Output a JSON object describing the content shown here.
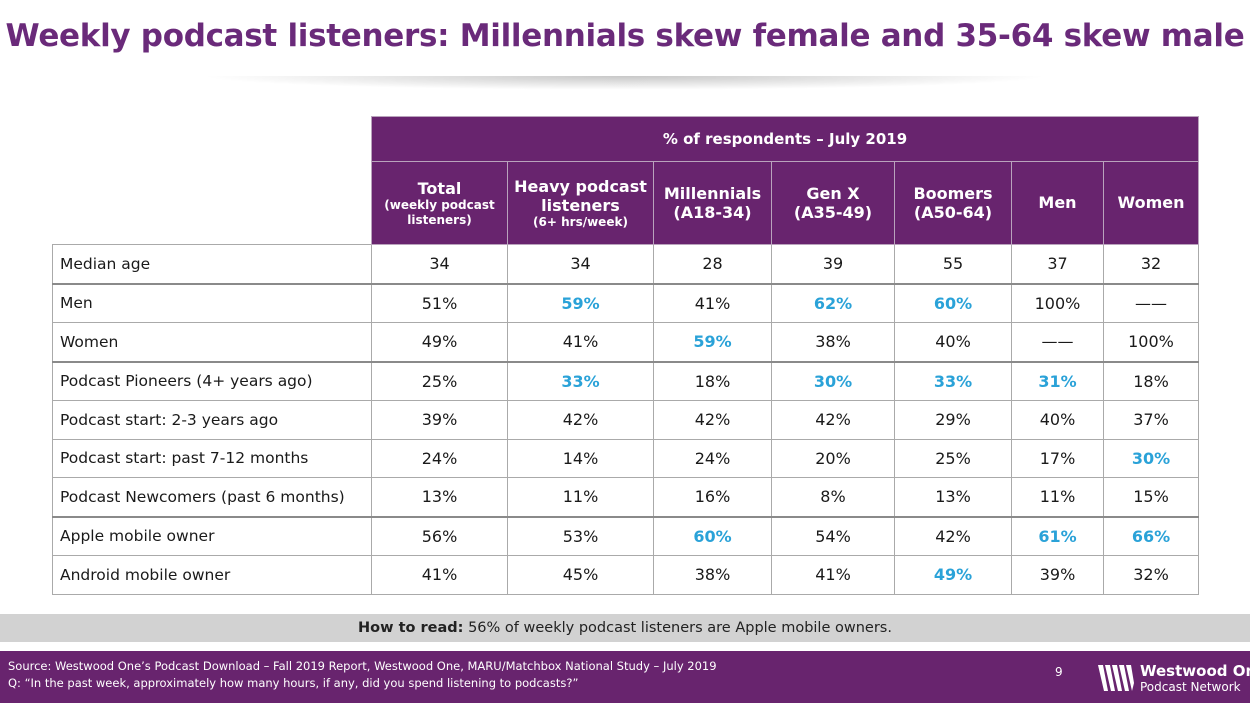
{
  "title": "Weekly podcast listeners: Millennials skew female and 35-64 skew male",
  "table": {
    "band_header": "% of respondents – July 2019",
    "columns": [
      {
        "l1": "Total",
        "l2": "(weekly podcast listeners)"
      },
      {
        "l1": "Heavy podcast listeners",
        "l2": "(6+ hrs/week)"
      },
      {
        "l1": "Millennials",
        "l2": "(A18-34)"
      },
      {
        "l1": "Gen X",
        "l2": "(A35-49)"
      },
      {
        "l1": "Boomers",
        "l2": "(A50-64)"
      },
      {
        "l1": "Men",
        "l2": ""
      },
      {
        "l1": "Women",
        "l2": ""
      }
    ],
    "rows": [
      {
        "label": "Median age",
        "cells": [
          "34",
          "34",
          "28",
          "39",
          "55",
          "37",
          "32"
        ],
        "highlight": [
          false,
          false,
          false,
          false,
          false,
          false,
          false
        ]
      },
      {
        "label": "Men",
        "cells": [
          "51%",
          "59%",
          "41%",
          "62%",
          "60%",
          "100%",
          "——"
        ],
        "highlight": [
          false,
          true,
          false,
          true,
          true,
          false,
          false
        ]
      },
      {
        "label": "Women",
        "cells": [
          "49%",
          "41%",
          "59%",
          "38%",
          "40%",
          "——",
          "100%"
        ],
        "highlight": [
          false,
          false,
          true,
          false,
          false,
          false,
          false
        ]
      },
      {
        "label": "Podcast Pioneers (4+ years ago)",
        "cells": [
          "25%",
          "33%",
          "18%",
          "30%",
          "33%",
          "31%",
          "18%"
        ],
        "highlight": [
          false,
          true,
          false,
          true,
          true,
          true,
          false
        ]
      },
      {
        "label": "Podcast start: 2-3 years ago",
        "cells": [
          "39%",
          "42%",
          "42%",
          "42%",
          "29%",
          "40%",
          "37%"
        ],
        "highlight": [
          false,
          false,
          false,
          false,
          false,
          false,
          false
        ]
      },
      {
        "label": "Podcast start: past 7-12 months",
        "cells": [
          "24%",
          "14%",
          "24%",
          "20%",
          "25%",
          "17%",
          "30%"
        ],
        "highlight": [
          false,
          false,
          false,
          false,
          false,
          false,
          true
        ]
      },
      {
        "label": "Podcast Newcomers (past 6 months)",
        "cells": [
          "13%",
          "11%",
          "16%",
          "8%",
          "13%",
          "11%",
          "15%"
        ],
        "highlight": [
          false,
          false,
          false,
          false,
          false,
          false,
          false
        ]
      },
      {
        "label": "Apple mobile owner",
        "cells": [
          "56%",
          "53%",
          "60%",
          "54%",
          "42%",
          "61%",
          "66%"
        ],
        "highlight": [
          false,
          false,
          true,
          false,
          false,
          true,
          true
        ]
      },
      {
        "label": "Android mobile owner",
        "cells": [
          "41%",
          "45%",
          "38%",
          "41%",
          "49%",
          "39%",
          "32%"
        ],
        "highlight": [
          false,
          false,
          false,
          false,
          true,
          false,
          false
        ]
      }
    ]
  },
  "how_to_read": {
    "label": "How to read:",
    "text": " 56% of weekly podcast listeners are Apple mobile owners."
  },
  "footer": {
    "source_line1": "Source: Westwood One’s Podcast Download – Fall 2019 Report, Westwood One, MARU/Matchbox National Study – July 2019",
    "source_line2": "Q: “In the past week, approximately how many hours, if any, did you spend listening to podcasts?”",
    "page_number": "9",
    "logo_line1": "Westwood One",
    "logo_line2": "Podcast Network"
  },
  "colors": {
    "brand_purple": "#68246e",
    "highlight_blue": "#2aa2d8",
    "how_to_read_bg": "#d2d2d2"
  }
}
